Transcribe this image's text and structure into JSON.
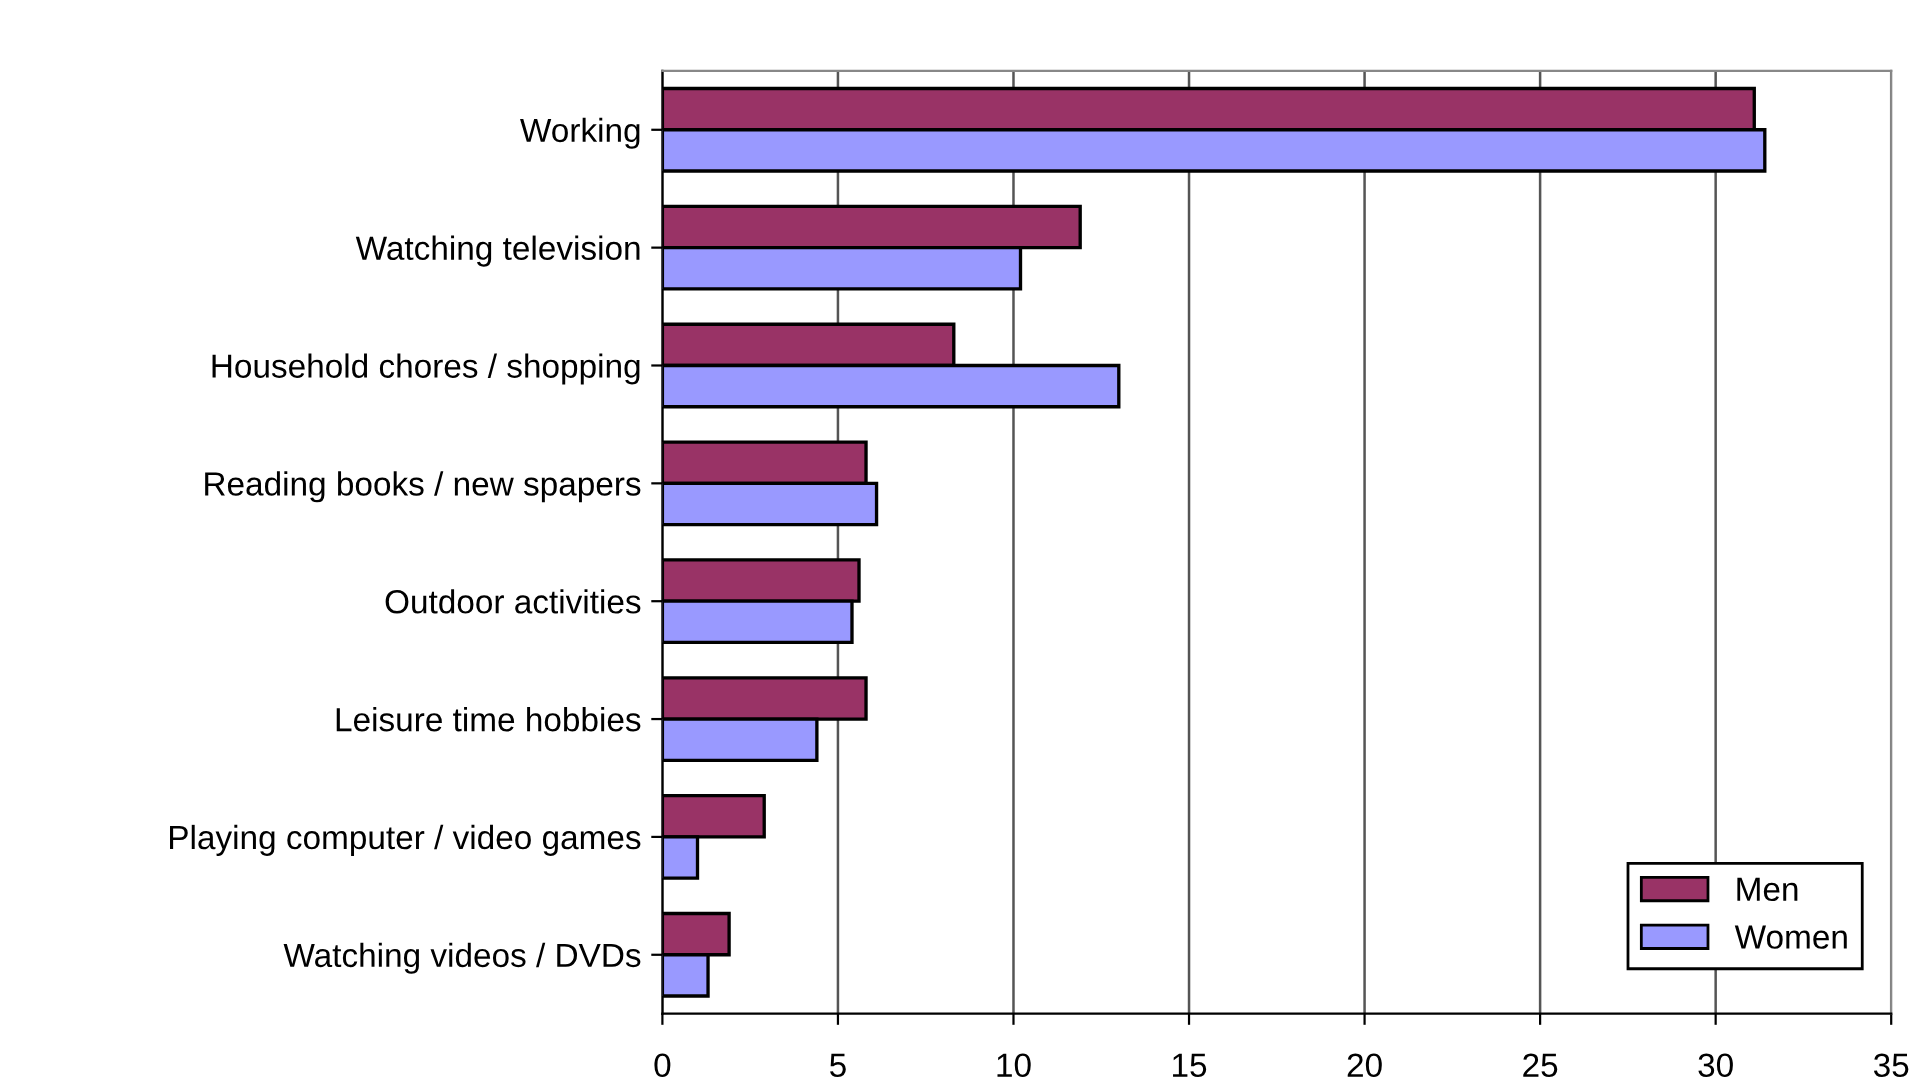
{
  "chart_data": {
    "type": "bar",
    "orientation": "horizontal",
    "categories": [
      "Working",
      "Watching television",
      "Household chores / shopping",
      "Reading books / new spapers",
      "Outdoor activities",
      "Leisure time hobbies",
      "Playing computer / video games",
      "Watching videos / DVDs"
    ],
    "series": [
      {
        "name": "Men",
        "color": "#993366",
        "values": [
          31.1,
          11.9,
          8.3,
          5.8,
          5.6,
          5.8,
          2.9,
          1.9
        ]
      },
      {
        "name": "Women",
        "color": "#9999ff",
        "values": [
          31.4,
          10.2,
          13.0,
          6.1,
          5.4,
          4.4,
          1.0,
          1.3
        ]
      }
    ],
    "xlim": [
      0,
      35
    ],
    "xticks": [
      0,
      5,
      10,
      15,
      20,
      25,
      30,
      35
    ],
    "grid": "x",
    "legend": "bottom right"
  }
}
